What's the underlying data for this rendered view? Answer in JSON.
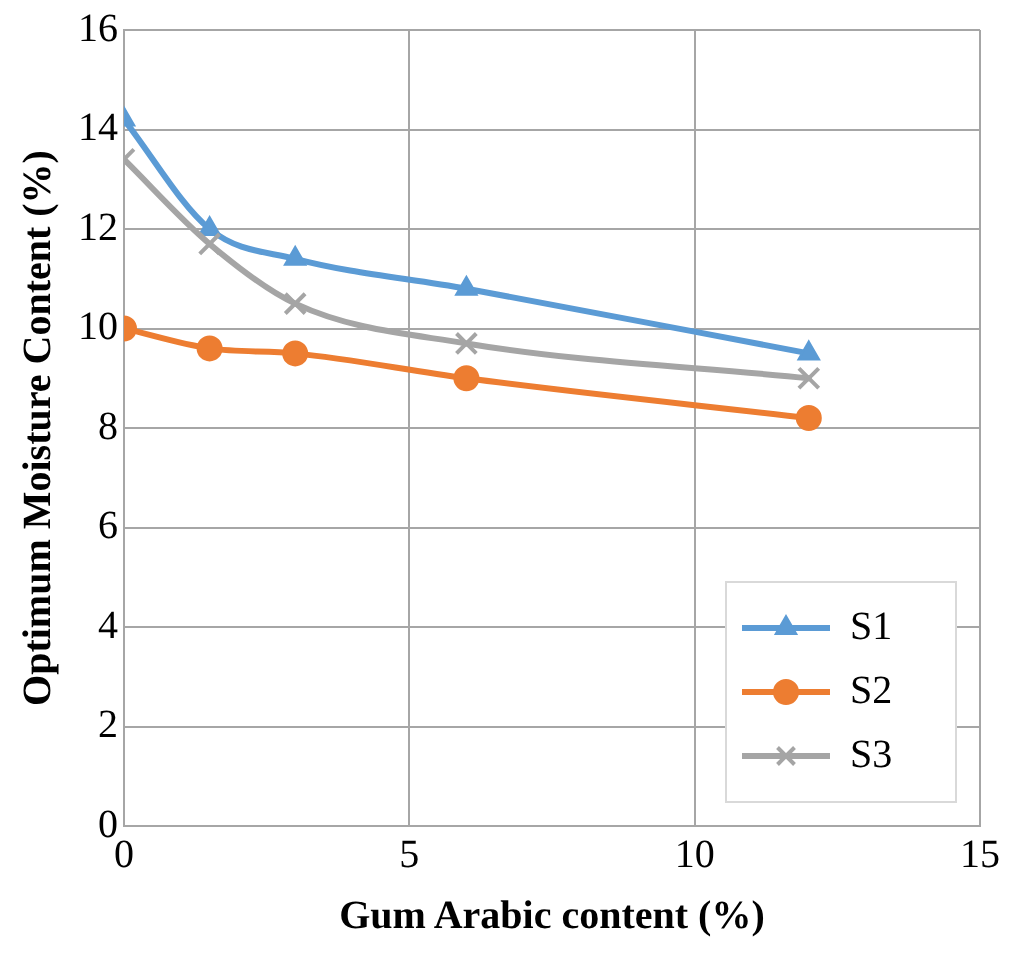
{
  "chart_data": {
    "type": "line",
    "xlabel": "Gum Arabic content (%)",
    "ylabel": "Optimum Moisture Content (%)",
    "x": [
      0,
      1.5,
      3,
      6,
      12
    ],
    "series": [
      {
        "name": "S1",
        "color": "#5b9bd5",
        "marker": "triangle",
        "values": [
          14.2,
          12,
          11.4,
          10.8,
          9.5
        ]
      },
      {
        "name": "S2",
        "color": "#ed7d31",
        "marker": "circle",
        "values": [
          10,
          9.6,
          9.5,
          9,
          8.2
        ]
      },
      {
        "name": "S3",
        "color": "#a5a5a5",
        "marker": "cross",
        "values": [
          13.4,
          11.7,
          10.5,
          9.7,
          9
        ]
      }
    ],
    "xlim": [
      0,
      15
    ],
    "xticks": [
      0,
      5,
      10,
      15
    ],
    "ylim": [
      0,
      16
    ],
    "yticks": [
      0,
      2,
      4,
      6,
      8,
      10,
      12,
      14,
      16
    ],
    "grid": true,
    "legend": "bottom right",
    "line_style": "solid"
  }
}
